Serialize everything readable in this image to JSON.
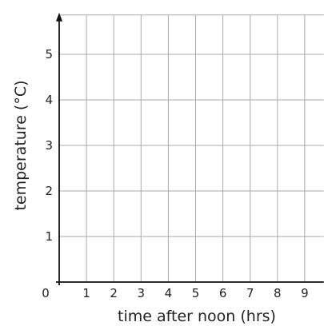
{
  "chart_data": {
    "type": "line",
    "title": "",
    "xlabel": "time after noon (hrs)",
    "ylabel": "temperature (°C)",
    "xlim": [
      0,
      9.7
    ],
    "ylim": [
      0,
      5.9
    ],
    "x_ticks": [
      1,
      2,
      3,
      4,
      5,
      6,
      7,
      8,
      9
    ],
    "y_ticks": [
      1,
      2,
      3,
      4,
      5
    ],
    "origin_label": "0",
    "grid": true,
    "series": []
  }
}
